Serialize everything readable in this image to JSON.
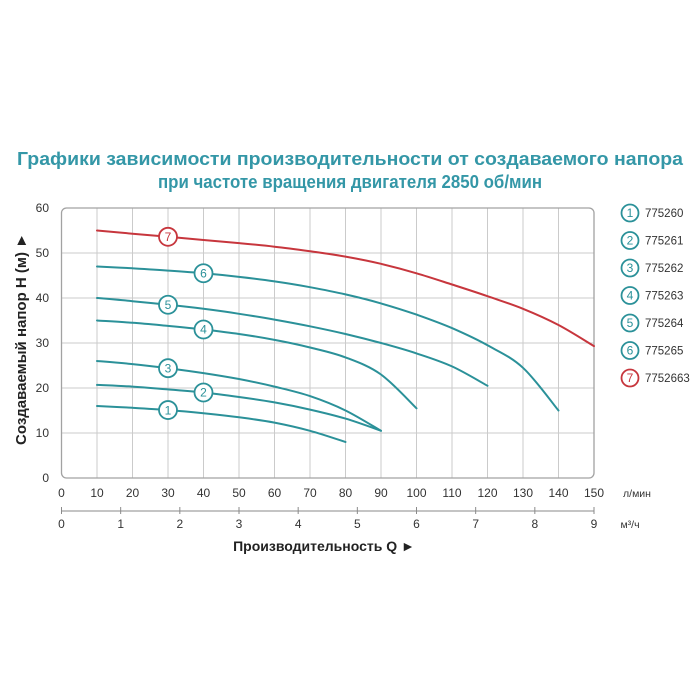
{
  "chart_data": {
    "type": "line",
    "title": [
      "Графики зависимости производительности от создаваемого напора",
      "при частоте вращения двигателя 2850 об/мин"
    ],
    "xlabel": "Производительность Q ►",
    "ylabel": "Создаваемый напор H (м) ►",
    "x_unit": "л/мин",
    "x2_unit": "м³/ч",
    "xlim": [
      0,
      150
    ],
    "x2lim": [
      0,
      9
    ],
    "ylim": [
      0,
      60
    ],
    "xticks": [
      0,
      10,
      20,
      30,
      40,
      50,
      60,
      70,
      80,
      90,
      100,
      110,
      120,
      130,
      140,
      150
    ],
    "x2ticks": [
      0,
      1,
      2,
      3,
      4,
      5,
      6,
      7,
      8,
      9
    ],
    "yticks": [
      0,
      10,
      20,
      30,
      40,
      50,
      60
    ],
    "grid": true,
    "legend_position": "right",
    "series": [
      {
        "label": "1",
        "name": "775260",
        "color": "#2b9199",
        "x": [
          10,
          20,
          30,
          40,
          50,
          60,
          70,
          80
        ],
        "y": [
          16,
          15.6,
          15.1,
          14.4,
          13.5,
          12.3,
          10.5,
          8
        ]
      },
      {
        "label": "2",
        "name": "775261",
        "color": "#2b9199",
        "x": [
          10,
          20,
          30,
          40,
          50,
          60,
          70,
          80,
          90
        ],
        "y": [
          20.7,
          20.3,
          19.7,
          19,
          18,
          16.8,
          15.2,
          13.2,
          10.5
        ]
      },
      {
        "label": "3",
        "name": "775262",
        "color": "#2b9199",
        "x": [
          10,
          20,
          30,
          40,
          50,
          60,
          70,
          80,
          90
        ],
        "y": [
          26,
          25.3,
          24.4,
          23.3,
          22,
          20.3,
          18.2,
          15,
          10.5
        ]
      },
      {
        "label": "4",
        "name": "775263",
        "color": "#2b9199",
        "x": [
          10,
          20,
          30,
          40,
          50,
          60,
          70,
          80,
          90,
          100
        ],
        "y": [
          35,
          34.5,
          33.8,
          33,
          32,
          30.7,
          29,
          26.8,
          23,
          15.5
        ]
      },
      {
        "label": "5",
        "name": "775264",
        "color": "#2b9199",
        "x": [
          10,
          20,
          30,
          40,
          50,
          60,
          70,
          80,
          90,
          100,
          110,
          120
        ],
        "y": [
          40,
          39.3,
          38.5,
          37.6,
          36.5,
          35.2,
          33.7,
          32,
          30,
          27.7,
          24.8,
          20.5
        ]
      },
      {
        "label": "6",
        "name": "775265",
        "color": "#2b9199",
        "x": [
          10,
          20,
          30,
          40,
          50,
          60,
          70,
          80,
          90,
          100,
          110,
          120,
          130,
          140
        ],
        "y": [
          47,
          46.6,
          46.1,
          45.5,
          44.7,
          43.7,
          42.4,
          40.8,
          38.8,
          36.3,
          33.3,
          29.5,
          24.5,
          15
        ]
      },
      {
        "label": "7",
        "name": "7752663",
        "color": "#c7363d",
        "x": [
          10,
          20,
          30,
          40,
          50,
          60,
          70,
          80,
          90,
          100,
          110,
          120,
          130,
          140,
          150
        ],
        "y": [
          55,
          54.3,
          53.6,
          52.9,
          52.2,
          51.4,
          50.4,
          49.2,
          47.6,
          45.5,
          43,
          40.4,
          37.6,
          34,
          29.3
        ]
      }
    ]
  }
}
